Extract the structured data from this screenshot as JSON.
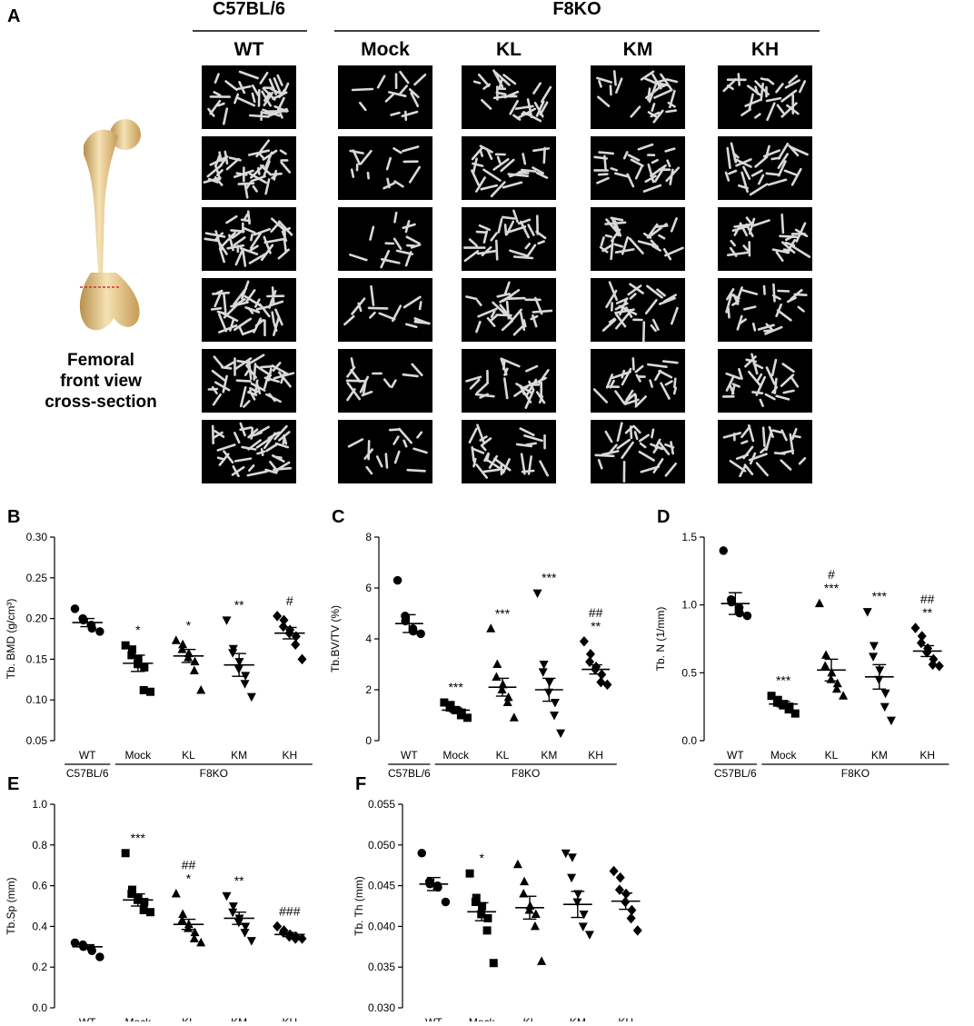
{
  "panel_a": {
    "letter": "A",
    "group_left": "C57BL/6",
    "group_right": "F8KO",
    "columns": [
      "WT",
      "Mock",
      "KL",
      "KM",
      "KH"
    ],
    "bone_caption": [
      "Femoral",
      "front view",
      "cross-section"
    ],
    "rows": 6,
    "colors": {
      "bone_light": "#f2dcaa",
      "bone_dark": "#c9a35e",
      "cut_line": "#d0302a",
      "scan_bg": "#000000",
      "trabecula": "#d9d9d9"
    }
  },
  "x_groups": {
    "wt": "WT",
    "wt_strain": "C57BL/6",
    "ko": [
      "Mock",
      "KL",
      "KM",
      "KH"
    ],
    "ko_strain": "F8KO"
  },
  "chart_data": [
    {
      "panel": "B",
      "type": "scatter",
      "ylabel": "Tb. BMD (g/cm³)",
      "ylim": [
        0.05,
        0.3
      ],
      "yticks": [
        0.05,
        0.1,
        0.15,
        0.2,
        0.25,
        0.3
      ],
      "decimals": 2,
      "categories": [
        "WT",
        "Mock",
        "KL",
        "KM",
        "KH"
      ],
      "markers": [
        "circle",
        "square",
        "triangle-up",
        "triangle-down",
        "diamond"
      ],
      "points": [
        [
          0.212,
          0.2,
          0.198,
          0.192,
          0.188,
          0.184
        ],
        [
          0.167,
          0.162,
          0.155,
          0.15,
          0.144,
          0.14,
          0.112,
          0.11
        ],
        [
          0.173,
          0.168,
          0.162,
          0.157,
          0.152,
          0.147,
          0.136,
          0.112
        ],
        [
          0.198,
          0.163,
          0.158,
          0.147,
          0.138,
          0.13,
          0.12,
          0.104
        ],
        [
          0.203,
          0.198,
          0.19,
          0.186,
          0.182,
          0.178,
          0.168,
          0.15
        ]
      ],
      "means": [
        0.195,
        0.145,
        0.154,
        0.143,
        0.182
      ],
      "sems": [
        0.005,
        0.01,
        0.008,
        0.014,
        0.007
      ],
      "annotations": [
        "",
        "*",
        "*",
        "**",
        "#"
      ]
    },
    {
      "panel": "C",
      "type": "scatter",
      "ylabel": "Tb.BV/TV (%)",
      "ylim": [
        0,
        8
      ],
      "yticks": [
        0,
        2,
        4,
        6,
        8
      ],
      "decimals": 0,
      "categories": [
        "WT",
        "Mock",
        "KL",
        "KM",
        "KH"
      ],
      "markers": [
        "circle",
        "square",
        "triangle-up",
        "triangle-down",
        "diamond"
      ],
      "points": [
        [
          6.3,
          4.9,
          4.7,
          4.4,
          4.3,
          4.2
        ],
        [
          1.5,
          1.4,
          1.3,
          1.2,
          1.2,
          1.1,
          1.0,
          0.9
        ],
        [
          4.4,
          3.0,
          2.5,
          2.2,
          2.0,
          1.7,
          1.5,
          0.9
        ],
        [
          5.8,
          3.0,
          2.7,
          2.3,
          1.9,
          1.5,
          1.0,
          0.3
        ],
        [
          3.9,
          3.4,
          3.1,
          2.9,
          2.8,
          2.6,
          2.3,
          2.2
        ]
      ],
      "means": [
        4.6,
        1.2,
        2.1,
        2.0,
        2.8
      ],
      "sems": [
        0.35,
        0.08,
        0.35,
        0.45,
        0.18
      ],
      "annotations": [
        "",
        "***",
        "***",
        "***",
        "##\n**"
      ]
    },
    {
      "panel": "D",
      "type": "scatter",
      "ylabel": "Tb. N (1/mm)",
      "ylim": [
        0.0,
        1.5
      ],
      "yticks": [
        0.0,
        0.5,
        1.0,
        1.5
      ],
      "decimals": 1,
      "categories": [
        "WT",
        "Mock",
        "KL",
        "KM",
        "KH"
      ],
      "markers": [
        "circle",
        "square",
        "triangle-up",
        "triangle-down",
        "diamond"
      ],
      "points": [
        [
          1.4,
          1.04,
          1.02,
          0.98,
          0.94,
          0.92
        ],
        [
          0.33,
          0.3,
          0.28,
          0.27,
          0.26,
          0.25,
          0.23,
          0.2
        ],
        [
          1.01,
          0.63,
          0.55,
          0.5,
          0.45,
          0.42,
          0.38,
          0.33
        ],
        [
          0.95,
          0.7,
          0.62,
          0.52,
          0.45,
          0.35,
          0.25,
          0.15
        ],
        [
          0.83,
          0.77,
          0.72,
          0.68,
          0.65,
          0.6,
          0.56,
          0.55
        ]
      ],
      "means": [
        1.01,
        0.27,
        0.52,
        0.47,
        0.66
      ],
      "sems": [
        0.08,
        0.02,
        0.08,
        0.09,
        0.04
      ],
      "annotations": [
        "",
        "***",
        "#\n***",
        "***",
        "##\n**"
      ]
    },
    {
      "panel": "E",
      "type": "scatter",
      "ylabel": "Tb.Sp (mm)",
      "ylim": [
        0.0,
        1.0
      ],
      "yticks": [
        0.0,
        0.2,
        0.4,
        0.6,
        0.8,
        1.0
      ],
      "decimals": 1,
      "categories": [
        "WT",
        "Mock",
        "KL",
        "KM",
        "KH"
      ],
      "markers": [
        "circle",
        "square",
        "triangle-up",
        "triangle-down",
        "diamond"
      ],
      "points": [
        [
          0.32,
          0.31,
          0.3,
          0.29,
          0.28,
          0.25
        ],
        [
          0.76,
          0.58,
          0.56,
          0.54,
          0.53,
          0.52,
          0.48,
          0.47
        ],
        [
          0.56,
          0.46,
          0.43,
          0.41,
          0.39,
          0.37,
          0.34,
          0.32
        ],
        [
          0.55,
          0.5,
          0.47,
          0.44,
          0.42,
          0.4,
          0.37,
          0.33
        ],
        [
          0.4,
          0.38,
          0.37,
          0.36,
          0.35,
          0.35,
          0.34,
          0.34
        ]
      ],
      "means": [
        0.3,
        0.53,
        0.41,
        0.44,
        0.36
      ],
      "sems": [
        0.01,
        0.03,
        0.025,
        0.03,
        0.01
      ],
      "annotations": [
        "",
        "***",
        "##\n*",
        "**",
        "###"
      ]
    },
    {
      "panel": "F",
      "type": "scatter",
      "ylabel": "Tb. Th (mm)",
      "ylim": [
        0.03,
        0.055
      ],
      "yticks": [
        0.03,
        0.035,
        0.04,
        0.045,
        0.05,
        0.055
      ],
      "decimals": 3,
      "categories": [
        "WT",
        "Mock",
        "KL",
        "KM",
        "KH"
      ],
      "markers": [
        "circle",
        "square",
        "triangle-up",
        "triangle-down",
        "diamond"
      ],
      "points": [
        [
          0.049,
          0.0455,
          0.0452,
          0.045,
          0.0448,
          0.043
        ],
        [
          0.0465,
          0.0435,
          0.043,
          0.0425,
          0.0415,
          0.041,
          0.0395,
          0.0355
        ],
        [
          0.0476,
          0.0455,
          0.044,
          0.0425,
          0.042,
          0.0415,
          0.04,
          0.0357
        ],
        [
          0.049,
          0.0485,
          0.046,
          0.044,
          0.043,
          0.0415,
          0.04,
          0.039
        ],
        [
          0.0468,
          0.046,
          0.0445,
          0.044,
          0.043,
          0.042,
          0.041,
          0.0395
        ]
      ],
      "means": [
        0.0452,
        0.0418,
        0.0423,
        0.0427,
        0.0431
      ],
      "sems": [
        0.0008,
        0.0011,
        0.0014,
        0.0016,
        0.001
      ],
      "annotations": [
        "",
        "*",
        "",
        "",
        ""
      ]
    }
  ]
}
